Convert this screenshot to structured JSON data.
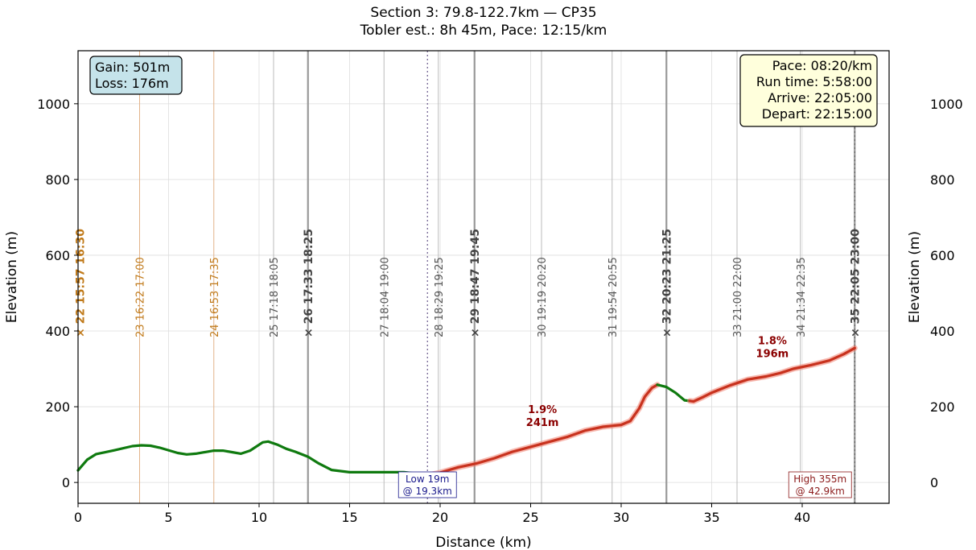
{
  "chart_data": {
    "type": "line",
    "title_line1": "Section 3: 79.8-122.7km  —  CP35",
    "title_line2": "Tobler est.: 8h 45m,  Pace: 12:15/km",
    "xlabel": "Distance (km)",
    "ylabel": "Elevation (m)",
    "xlim": [
      0,
      44.8
    ],
    "ylim": [
      -55,
      1140
    ],
    "x_ticks": [
      0,
      5,
      10,
      15,
      20,
      25,
      30,
      35,
      40
    ],
    "y_ticks": [
      0,
      200,
      400,
      600,
      800,
      1000
    ],
    "right_y_ticks": [
      0,
      200,
      400,
      600,
      800,
      1000
    ],
    "grid": true,
    "colors": {
      "flat": "#0f7a0f",
      "climb": "#c8321e",
      "climb_glow": "#f08070",
      "orange": "#c07a1a",
      "gray": "#555555",
      "dark_gray": "#444444",
      "low_blue": "#1a1a8c",
      "high_red": "#8b1a1a",
      "gain_box": "#c5e3ea",
      "pace_box": "#ffffdc"
    },
    "profile": [
      [
        0,
        32
      ],
      [
        0.5,
        60
      ],
      [
        1,
        75
      ],
      [
        2,
        85
      ],
      [
        3,
        96
      ],
      [
        3.5,
        98
      ],
      [
        4,
        97
      ],
      [
        4.5,
        92
      ],
      [
        5.5,
        78
      ],
      [
        6,
        74
      ],
      [
        6.5,
        76
      ],
      [
        7.5,
        84
      ],
      [
        8,
        84
      ],
      [
        8.5,
        80
      ],
      [
        9,
        76
      ],
      [
        9.5,
        84
      ],
      [
        10.2,
        106
      ],
      [
        10.5,
        108
      ],
      [
        11,
        100
      ],
      [
        11.5,
        89
      ],
      [
        12,
        81
      ],
      [
        12.7,
        68
      ],
      [
        13.3,
        50
      ],
      [
        14,
        33
      ],
      [
        15,
        27
      ],
      [
        16,
        27
      ],
      [
        17,
        27
      ],
      [
        18,
        27
      ],
      [
        19,
        22
      ],
      [
        19.3,
        19
      ],
      [
        20,
        26
      ],
      [
        21,
        40
      ],
      [
        22,
        50
      ],
      [
        23,
        64
      ],
      [
        24,
        81
      ],
      [
        25,
        94
      ],
      [
        26,
        107
      ],
      [
        27,
        120
      ],
      [
        28,
        137
      ],
      [
        29,
        147
      ],
      [
        30,
        152
      ],
      [
        30.5,
        162
      ],
      [
        31,
        196
      ],
      [
        31.3,
        226
      ],
      [
        31.7,
        250
      ],
      [
        32,
        258
      ],
      [
        32.5,
        252
      ],
      [
        33,
        237
      ],
      [
        33.5,
        217
      ],
      [
        34,
        214
      ],
      [
        34.5,
        225
      ],
      [
        35,
        237
      ],
      [
        36,
        256
      ],
      [
        37,
        272
      ],
      [
        38,
        280
      ],
      [
        38.8,
        289
      ],
      [
        39.5,
        300
      ],
      [
        40.5,
        310
      ],
      [
        41.5,
        322
      ],
      [
        42.3,
        339
      ],
      [
        42.9,
        355
      ]
    ],
    "segments": [
      {
        "from": 0,
        "to": 19.3,
        "kind": "flat"
      },
      {
        "from": 19.3,
        "to": 32,
        "kind": "climb",
        "grade": "1.9%",
        "gain": "241m"
      },
      {
        "from": 32,
        "to": 33.8,
        "kind": "flat"
      },
      {
        "from": 33.8,
        "to": 42.9,
        "kind": "climb",
        "grade": "1.8%",
        "gain": "196m"
      }
    ],
    "markers": [
      {
        "x": 0.1,
        "label": "× 22  15:57  16:30",
        "style": "orange-bold"
      },
      {
        "x": 3.4,
        "label": "23  16:22  17:00",
        "style": "orange"
      },
      {
        "x": 7.5,
        "label": "24  16:53  17:35",
        "style": "orange"
      },
      {
        "x": 10.8,
        "label": "25  17:18  18:05",
        "style": "gray"
      },
      {
        "x": 12.7,
        "label": "× 26  17:33  18:25",
        "style": "gray-bold"
      },
      {
        "x": 16.9,
        "label": "27  18:04  19:00",
        "style": "gray"
      },
      {
        "x": 19.9,
        "label": "28  18:29  19:25",
        "style": "gray"
      },
      {
        "x": 21.9,
        "label": "× 29  18:47  19:45",
        "style": "gray-bold"
      },
      {
        "x": 25.6,
        "label": "30  19:19  20:20",
        "style": "gray"
      },
      {
        "x": 29.5,
        "label": "31  19:54  20:55",
        "style": "gray"
      },
      {
        "x": 32.5,
        "label": "× 32  20:23  21:25",
        "style": "gray-bold"
      },
      {
        "x": 36.4,
        "label": "33  21:00  22:00",
        "style": "gray"
      },
      {
        "x": 39.9,
        "label": "34  21:34  22:35",
        "style": "gray"
      },
      {
        "x": 42.9,
        "label": "× 35  22:05  23:00",
        "style": "gray-bold"
      }
    ],
    "low_point": {
      "x": 19.3,
      "line1": "Low 19m",
      "line2": "@ 19.3km"
    },
    "high_point": {
      "x": 42.9,
      "line1": "High 355m",
      "line2": "@ 42.9km"
    },
    "gain_box": {
      "line1": "Gain: 501m",
      "line2": "Loss: 176m"
    },
    "pace_box": {
      "lines": [
        "Pace: 08:20/km",
        "Run time: 5:58:00",
        "Arrive: 22:05:00",
        "Depart: 22:15:00"
      ]
    }
  }
}
